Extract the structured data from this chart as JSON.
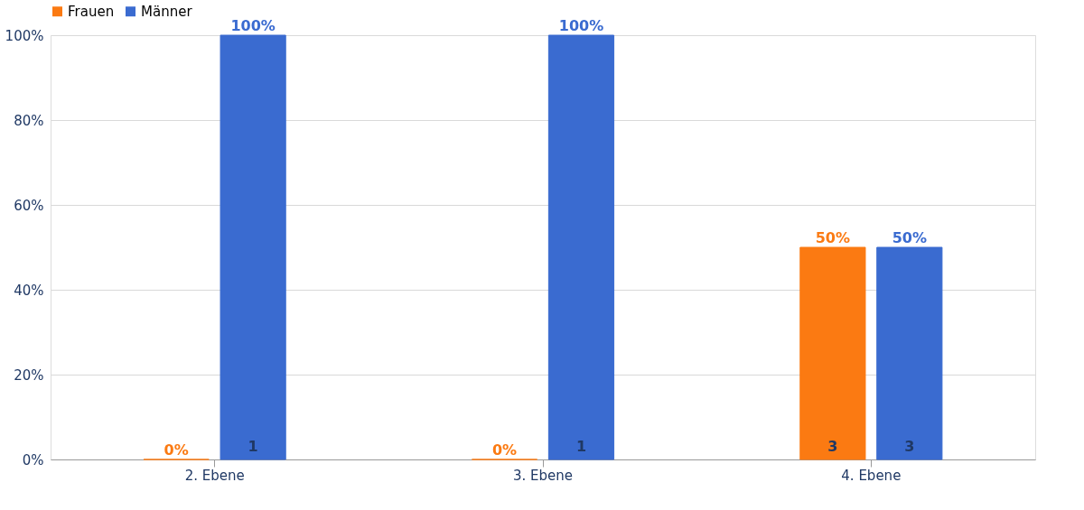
{
  "chart_data": {
    "type": "bar",
    "categories": [
      "2. Ebene",
      "3. Ebene",
      "4. Ebene"
    ],
    "series": [
      {
        "name": "Frauen",
        "color": "#fb7a12",
        "values": [
          0,
          0,
          50
        ],
        "value_labels": [
          "0%",
          "0%",
          "50%"
        ]
      },
      {
        "name": "Männer",
        "color": "#3a6bd0",
        "values": [
          100,
          100,
          50
        ],
        "value_labels": [
          "100%",
          "100%",
          "50%"
        ]
      }
    ],
    "ylim": [
      0,
      100
    ],
    "yticks": [
      {
        "value": 0,
        "label": "0%"
      },
      {
        "value": 20,
        "label": "20%"
      },
      {
        "value": 40,
        "label": "40%"
      },
      {
        "value": 60,
        "label": "60%"
      },
      {
        "value": 80,
        "label": "80%"
      },
      {
        "value": 100,
        "label": "100%"
      }
    ],
    "annotations": [
      "1",
      "1",
      "3",
      "3"
    ],
    "grid": "y",
    "legend": "top",
    "marker": "square"
  }
}
